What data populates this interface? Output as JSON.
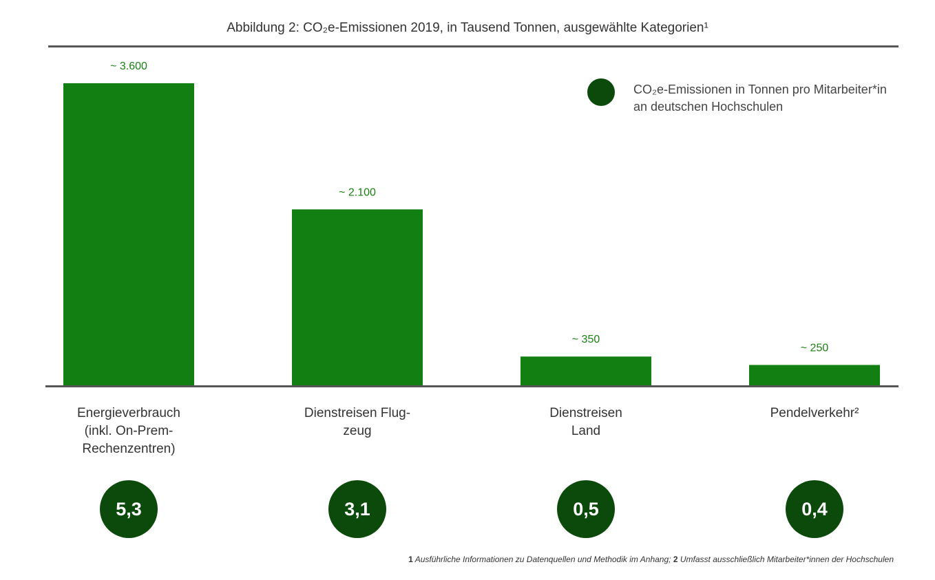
{
  "chart_data": {
    "type": "bar",
    "title": "Abbildung 2: CO₂e-Emissionen 2019, in Tausend Tonnen, ausgewählte Kategorien¹",
    "categories": [
      "Energieverbrauch\n(inkl. On-Prem-\nRechenzentren)",
      "Dienstreisen Flug-\nzeug",
      "Dienstreisen\nLand",
      "Pendelverkehr²"
    ],
    "values": [
      3600,
      2100,
      350,
      250
    ],
    "value_labels": [
      "~ 3.600",
      "~ 2.100",
      "~ 350",
      "~ 250"
    ],
    "color": "#127f12",
    "label_color": "#1a7f12",
    "per_employee": {
      "name": "CO₂e-Emissionen in Tonnen pro Mitarbeiter*in an deutschen Hochschulen",
      "color": "#0b4a0b",
      "values": [
        5.3,
        3.1,
        0.5,
        0.4
      ],
      "value_labels": [
        "5,3",
        "3,1",
        "0,5",
        "0,4"
      ]
    },
    "footnotes": [
      {
        "marker": "1",
        "text": "Ausführliche Informationen zu Datenquellen und Methodik im Anhang;"
      },
      {
        "marker": "2",
        "text": "Umfasst ausschließlich Mitarbeiter*innen der Hochschulen"
      }
    ]
  }
}
